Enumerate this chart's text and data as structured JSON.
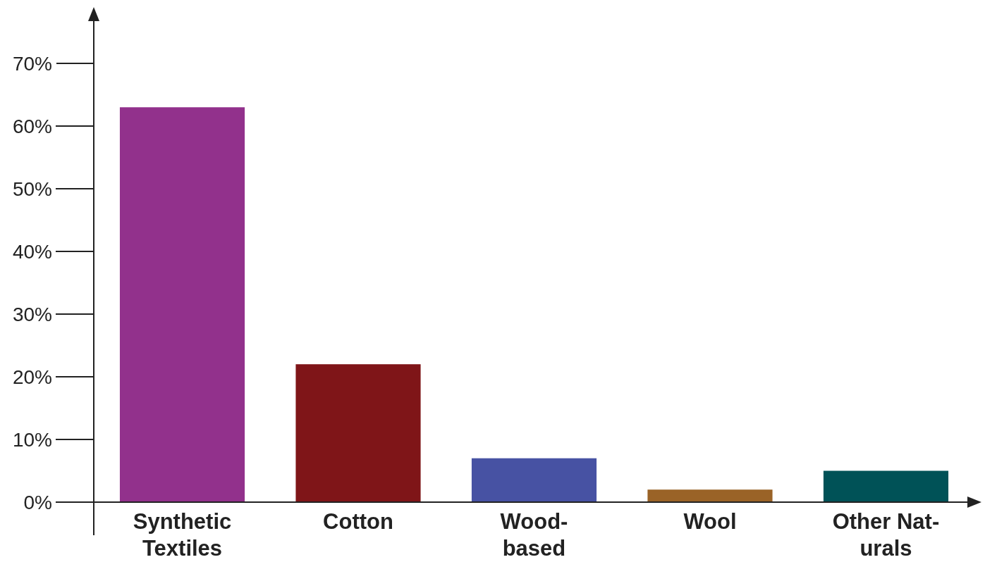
{
  "chart_data": {
    "type": "bar",
    "categories": [
      "Synthetic Textiles",
      "Cotton",
      "Wood-based",
      "Wool",
      "Other Nat-urals"
    ],
    "values": [
      63,
      22,
      7,
      2,
      5
    ],
    "colors": [
      "#92318c",
      "#7f1518",
      "#4752a3",
      "#9a6327",
      "#005257"
    ],
    "ylim": [
      0,
      70
    ],
    "yticks": [
      {
        "value": 0,
        "label": "0%"
      },
      {
        "value": 10,
        "label": "10%"
      },
      {
        "value": 20,
        "label": "20%"
      },
      {
        "value": 30,
        "label": "30%"
      },
      {
        "value": 40,
        "label": "40%"
      },
      {
        "value": 50,
        "label": "50%"
      },
      {
        "value": 60,
        "label": "60%"
      },
      {
        "value": 70,
        "label": "70%"
      }
    ],
    "grid": false
  }
}
